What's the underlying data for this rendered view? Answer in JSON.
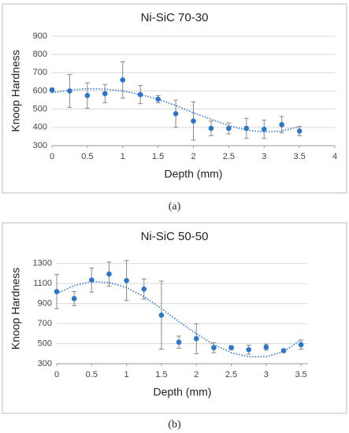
{
  "chart_data": [
    {
      "type": "scatter",
      "title": "Ni-SiC 70-30",
      "caption": "(a)",
      "x_label": "Depth (mm)",
      "y_label": "Knoop Hardness",
      "x": [
        0,
        0.25,
        0.5,
        0.75,
        1,
        1.25,
        1.5,
        1.75,
        2,
        2.25,
        2.5,
        2.75,
        3,
        3.25,
        3.5
      ],
      "series": [
        {
          "color": "#2e75c6",
          "values": [
            605,
            600,
            575,
            585,
            660,
            580,
            555,
            475,
            435,
            395,
            395,
            395,
            390,
            415,
            380
          ],
          "errors": [
            10,
            90,
            70,
            50,
            100,
            50,
            20,
            75,
            105,
            40,
            30,
            55,
            50,
            45,
            25
          ]
        }
      ],
      "trendline": {
        "color": "#2e75c6",
        "style": "dotted",
        "values": [
          590,
          605,
          612,
          610,
          600,
          580,
          555,
          520,
          480,
          445,
          410,
          385,
          375,
          380,
          405
        ]
      },
      "xlim": [
        0,
        4
      ],
      "xticks": [
        0,
        0.5,
        1,
        1.5,
        2,
        2.5,
        3,
        3.5,
        4
      ],
      "ylim": [
        300,
        900
      ],
      "yticks": [
        300,
        400,
        500,
        600,
        700,
        800,
        900
      ]
    },
    {
      "type": "scatter",
      "title": "Ni-SiC 50-50",
      "caption": "(b)",
      "x_label": "Depth (mm)",
      "y_label": "Knoop Hardness",
      "x": [
        0,
        0.25,
        0.5,
        0.75,
        1,
        1.25,
        1.5,
        1.75,
        2,
        2.25,
        2.5,
        2.75,
        3,
        3.25,
        3.5
      ],
      "series": [
        {
          "color": "#2e75c6",
          "values": [
            1020,
            950,
            1135,
            1195,
            1130,
            1045,
            785,
            515,
            550,
            460,
            460,
            440,
            465,
            430,
            490
          ],
          "errors": [
            170,
            70,
            120,
            120,
            200,
            100,
            340,
            60,
            150,
            50,
            20,
            45,
            30,
            15,
            45
          ]
        }
      ],
      "trendline": {
        "color": "#2e75c6",
        "style": "dotted",
        "values": [
          1000,
          1080,
          1120,
          1110,
          1060,
          970,
          850,
          720,
          600,
          490,
          410,
          370,
          370,
          420,
          540
        ]
      },
      "xlim": [
        0,
        3.6
      ],
      "xticks": [
        0,
        0.5,
        1,
        1.5,
        2,
        2.5,
        3,
        3.5
      ],
      "ylim": [
        300,
        1400
      ],
      "yticks": [
        300,
        500,
        700,
        900,
        1100,
        1300
      ]
    }
  ]
}
